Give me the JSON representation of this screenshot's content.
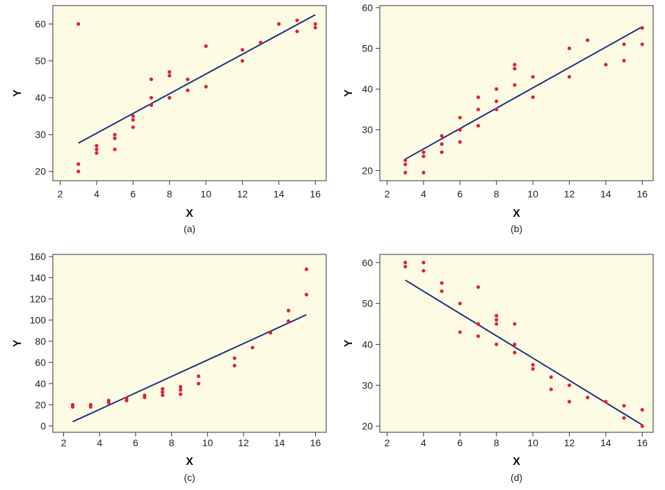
{
  "colors": {
    "panel_bg": "#fdfbe3",
    "point": "#e0203a",
    "line": "#1c2e80",
    "axis": "#333333"
  },
  "chart_data": [
    {
      "type": "scatter",
      "caption": "(a)",
      "xlabel": "X",
      "ylabel": "Y",
      "xlim": [
        1.6,
        16.6
      ],
      "ylim": [
        17.5,
        65
      ],
      "xticks": [
        2,
        4,
        6,
        8,
        10,
        12,
        14,
        16
      ],
      "yticks": [
        20,
        30,
        40,
        50,
        60
      ],
      "grid": false,
      "points": [
        [
          3,
          60
        ],
        [
          3,
          22
        ],
        [
          3,
          20
        ],
        [
          4,
          27
        ],
        [
          4,
          26
        ],
        [
          4,
          25
        ],
        [
          5,
          30
        ],
        [
          5,
          29
        ],
        [
          5,
          26
        ],
        [
          6,
          35
        ],
        [
          6,
          34
        ],
        [
          6,
          32
        ],
        [
          7,
          45
        ],
        [
          7,
          40
        ],
        [
          7,
          38
        ],
        [
          8,
          47
        ],
        [
          8,
          46
        ],
        [
          8,
          40
        ],
        [
          9,
          45
        ],
        [
          9,
          42
        ],
        [
          10,
          54
        ],
        [
          10,
          43
        ],
        [
          12,
          53
        ],
        [
          12,
          50
        ],
        [
          13,
          55
        ],
        [
          14,
          60
        ],
        [
          15,
          61
        ],
        [
          15,
          58
        ],
        [
          16,
          60
        ],
        [
          16,
          59
        ]
      ],
      "fit_line": [
        [
          3,
          27.7
        ],
        [
          16,
          62.5
        ]
      ]
    },
    {
      "type": "scatter",
      "caption": "(b)",
      "xlabel": "X",
      "ylabel": "Y",
      "xlim": [
        1.6,
        16.6
      ],
      "ylim": [
        17.5,
        60.5
      ],
      "xticks": [
        2,
        4,
        6,
        8,
        10,
        12,
        14,
        16
      ],
      "yticks": [
        20,
        30,
        40,
        50,
        60
      ],
      "grid": false,
      "points": [
        [
          3,
          22.5
        ],
        [
          3,
          21.5
        ],
        [
          3,
          19.5
        ],
        [
          4,
          24.5
        ],
        [
          4,
          23.5
        ],
        [
          4,
          19.5
        ],
        [
          5,
          28.5
        ],
        [
          5,
          26.5
        ],
        [
          5,
          24.5
        ],
        [
          6,
          33
        ],
        [
          6,
          30
        ],
        [
          6,
          27
        ],
        [
          7,
          38
        ],
        [
          7,
          35
        ],
        [
          7,
          31
        ],
        [
          8,
          40
        ],
        [
          8,
          37
        ],
        [
          8,
          35
        ],
        [
          9,
          46
        ],
        [
          9,
          45
        ],
        [
          9,
          41
        ],
        [
          10,
          43
        ],
        [
          10,
          38
        ],
        [
          12,
          50
        ],
        [
          12,
          43
        ],
        [
          13,
          52
        ],
        [
          14,
          46
        ],
        [
          15,
          51
        ],
        [
          15,
          47
        ],
        [
          16,
          55
        ],
        [
          16,
          51
        ]
      ],
      "fit_line": [
        [
          3,
          22.8
        ],
        [
          16,
          55.3
        ]
      ]
    },
    {
      "type": "scatter",
      "caption": "(c)",
      "xlabel": "X",
      "ylabel": "Y",
      "xlim": [
        1.4,
        16.6
      ],
      "ylim": [
        -6,
        162
      ],
      "xticks": [
        2,
        4,
        6,
        8,
        10,
        12,
        14,
        16
      ],
      "yticks": [
        0,
        20,
        40,
        60,
        80,
        100,
        120,
        140,
        160
      ],
      "grid": false,
      "points": [
        [
          2.5,
          20
        ],
        [
          2.5,
          18
        ],
        [
          3.5,
          20
        ],
        [
          3.5,
          18
        ],
        [
          4.5,
          24
        ],
        [
          4.5,
          22
        ],
        [
          5.5,
          26
        ],
        [
          5.5,
          24
        ],
        [
          6.5,
          29
        ],
        [
          6.5,
          27
        ],
        [
          7.5,
          35
        ],
        [
          7.5,
          32
        ],
        [
          7.5,
          29
        ],
        [
          8.5,
          37
        ],
        [
          8.5,
          34
        ],
        [
          8.5,
          30
        ],
        [
          9.5,
          47
        ],
        [
          9.5,
          40
        ],
        [
          11.5,
          64
        ],
        [
          11.5,
          57
        ],
        [
          12.5,
          74
        ],
        [
          13.5,
          88
        ],
        [
          14.5,
          109
        ],
        [
          14.5,
          99
        ],
        [
          15.5,
          148
        ],
        [
          15.5,
          124
        ]
      ],
      "fit_line": [
        [
          2.5,
          4
        ],
        [
          15.5,
          105
        ]
      ]
    },
    {
      "type": "scatter",
      "caption": "(d)",
      "xlabel": "X",
      "ylabel": "Y",
      "xlim": [
        1.6,
        16.6
      ],
      "ylim": [
        18.5,
        62
      ],
      "xticks": [
        2,
        4,
        6,
        8,
        10,
        12,
        14,
        16
      ],
      "yticks": [
        20,
        30,
        40,
        50,
        60
      ],
      "grid": false,
      "points": [
        [
          3,
          60
        ],
        [
          3,
          59
        ],
        [
          4,
          60
        ],
        [
          4,
          58
        ],
        [
          5,
          55
        ],
        [
          5,
          53
        ],
        [
          6,
          50
        ],
        [
          6,
          43
        ],
        [
          7,
          54
        ],
        [
          7,
          45
        ],
        [
          7,
          42
        ],
        [
          8,
          47
        ],
        [
          8,
          46
        ],
        [
          8,
          45
        ],
        [
          8,
          40
        ],
        [
          9,
          45
        ],
        [
          9,
          40
        ],
        [
          9,
          38
        ],
        [
          10,
          35
        ],
        [
          10,
          34
        ],
        [
          11,
          32
        ],
        [
          11,
          29
        ],
        [
          12,
          30
        ],
        [
          12,
          26
        ],
        [
          13,
          27
        ],
        [
          14,
          26
        ],
        [
          15,
          25
        ],
        [
          15,
          22
        ],
        [
          16,
          24
        ],
        [
          16,
          20
        ]
      ],
      "fit_line": [
        [
          3,
          55.7
        ],
        [
          16,
          20.3
        ]
      ]
    }
  ]
}
